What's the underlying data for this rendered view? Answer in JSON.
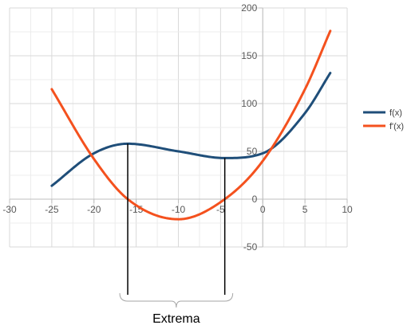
{
  "chart_data": {
    "type": "line",
    "xlim": [
      -30,
      10
    ],
    "ylim": [
      -50,
      200
    ],
    "x_ticks": [
      -30,
      -25,
      -20,
      -15,
      -10,
      -5,
      0,
      5,
      10
    ],
    "y_ticks": [
      -50,
      0,
      50,
      100,
      150,
      200
    ],
    "x_tick_labels": [
      "-30",
      "-25",
      "-20",
      "-15",
      "-10",
      "-5",
      "0",
      "5",
      "10"
    ],
    "y_tick_labels": [
      "-50",
      "0",
      "50",
      "100",
      "150",
      "200"
    ],
    "grid": true,
    "legend_position": "right",
    "x_domain": [
      -25,
      8
    ],
    "series": [
      {
        "name": "f(x)",
        "color": "#1f4e79",
        "x": [
          -25,
          -20,
          -16,
          -10,
          -4.5,
          0,
          5,
          8
        ],
        "y": [
          14,
          48,
          58,
          50,
          43,
          48,
          90,
          132
        ]
      },
      {
        "name": "f'(x)",
        "color": "#f4511e",
        "x": [
          -25,
          -20,
          -16,
          -10,
          -4.5,
          0,
          5,
          8
        ],
        "y": [
          115,
          42,
          0,
          -21,
          0,
          40,
          115,
          176
        ]
      }
    ],
    "annotations": [
      {
        "type": "vline",
        "x": -16,
        "from_y": 58,
        "to_y": -100
      },
      {
        "type": "vline",
        "x": -4.5,
        "from_y": 43,
        "to_y": -100
      }
    ],
    "annotation_label": "Extrema"
  }
}
